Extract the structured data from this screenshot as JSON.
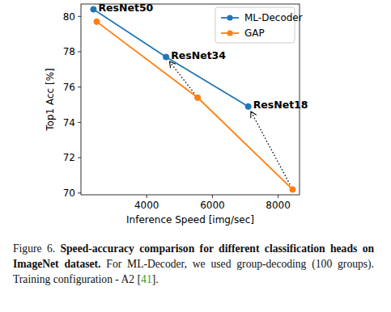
{
  "chart_data": {
    "type": "line",
    "x_label": "Inference Speed [img/sec]",
    "y_label": "Top1 Acc [%]",
    "series": [
      {
        "name": "ML-Decoder",
        "color": "#1f77b4",
        "marker": "circle",
        "x": [
          2380,
          4590,
          7090
        ],
        "values": [
          80.4,
          77.7,
          74.9
        ]
      },
      {
        "name": "GAP",
        "color": "#ff7f0e",
        "marker": "circle",
        "x": [
          2480,
          5550,
          8440
        ],
        "values": [
          79.7,
          75.4,
          70.2
        ]
      }
    ],
    "annotations": [
      "ResNet50",
      "ResNet34",
      "ResNet18"
    ],
    "xlim": [
      2000,
      8650
    ],
    "xticks": [
      4000,
      6000,
      8000
    ],
    "ylim": [
      69.9,
      80.7
    ],
    "yticks": [
      70,
      72,
      74,
      76,
      78,
      80
    ],
    "legend": "upper right",
    "grid": false
  },
  "caption": {
    "label": "Figure 6.",
    "bold": "Speed-accuracy comparison for different classification heads on ImageNet dataset.",
    "text": "For ML-Decoder, we used group-decoding (100 groups). Training configuration - A2 [",
    "ref": "41",
    "end": "]."
  }
}
